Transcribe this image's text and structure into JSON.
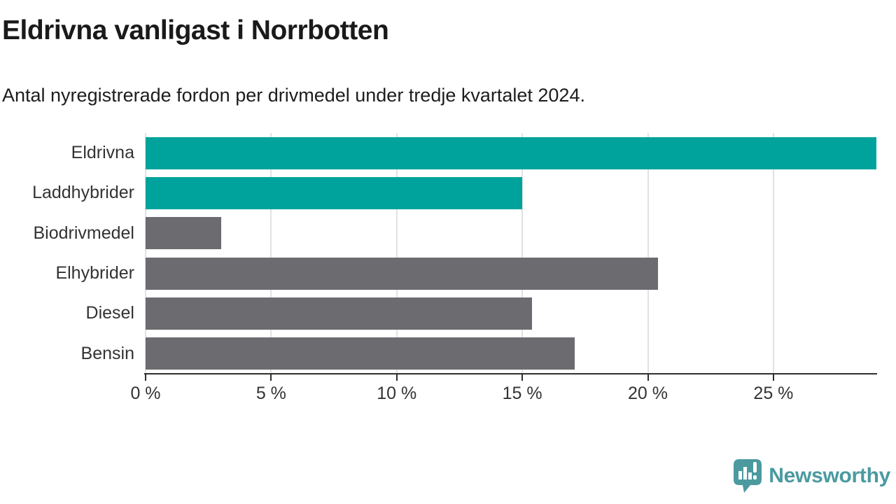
{
  "chart": {
    "title": "Eldrivna vanligast i Norrbotten",
    "subtitle": "Antal nyregistrerade fordon per drivmedel under tredje kvartalet 2024."
  },
  "chart_data": {
    "type": "bar",
    "orientation": "horizontal",
    "title": "Eldrivna vanligast i Norrbotten",
    "subtitle": "Antal nyregistrerade fordon per drivmedel under tredje kvartalet 2024.",
    "categories": [
      "Eldrivna",
      "Laddhybrider",
      "Biodrivmedel",
      "Elhybrider",
      "Diesel",
      "Bensin"
    ],
    "values": [
      29.1,
      15.0,
      3.0,
      20.4,
      15.4,
      17.1
    ],
    "unit": "%",
    "bar_colors": [
      "#00a39c",
      "#00a39c",
      "#6b6b70",
      "#6b6b70",
      "#6b6b70",
      "#6b6b70"
    ],
    "xlabel": "",
    "ylabel": "",
    "xlim": [
      0,
      29.1
    ],
    "x_ticks": [
      {
        "value": 0,
        "label": "0 %"
      },
      {
        "value": 5,
        "label": "5 %"
      },
      {
        "value": 10,
        "label": "10 %"
      },
      {
        "value": 15,
        "label": "15 %"
      },
      {
        "value": 20,
        "label": "20 %"
      },
      {
        "value": 25,
        "label": "25 %"
      }
    ],
    "grid": "vertical",
    "legend": "none"
  },
  "colors": {
    "accent_teal": "#00a39c",
    "neutral_gray": "#6b6b70",
    "gridline": "#e2e2e2",
    "axis": "#2f2f2f",
    "title_text": "#1a1a1a",
    "label_text": "#333333",
    "logo_teal": "#4a9aa0"
  },
  "footer": {
    "brand": "Newsworthy"
  }
}
